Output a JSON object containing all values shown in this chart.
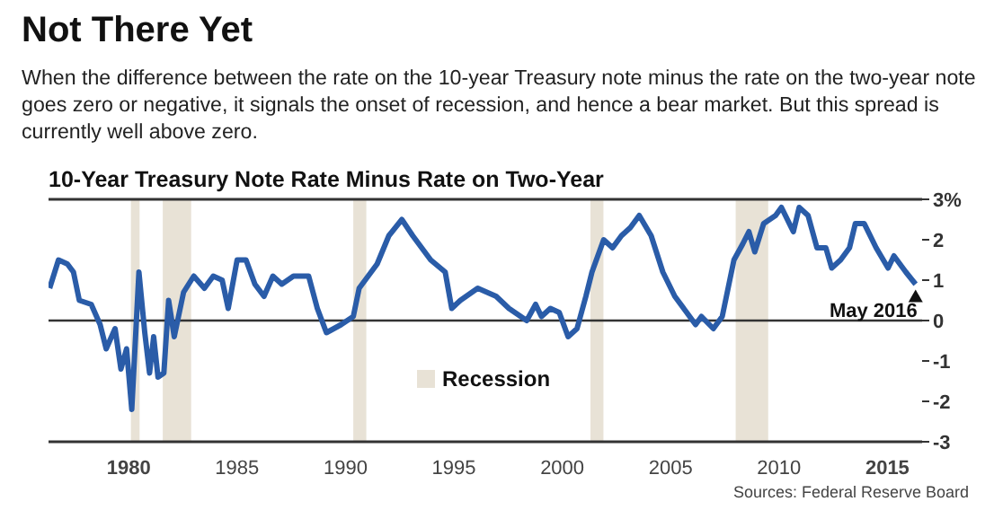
{
  "chart_data": {
    "type": "line",
    "title": "Not There Yet",
    "subtitle": "When the difference between the rate on the 10-year Treasury note minus the rate on the two-year note goes zero or negative, it signals the onset of recession, and hence a bear market. But this spread is currently well above zero.",
    "annotations": [
      "10-Year Treasury Note Rate Minus Rate on Two-Year",
      "Recession",
      "Sources: Federal Reserve Board",
      {
        "text": "May 2016",
        "x": 2016.3,
        "y": 0.9
      }
    ],
    "series": [
      {
        "color": "#2a5ca8",
        "x": [
          1976.35,
          1976.76,
          1977.17,
          1977.45,
          1977.72,
          1978.27,
          1978.68,
          1978.96,
          1979.37,
          1979.64,
          1979.9,
          1980.14,
          1980.47,
          1980.74,
          1980.96,
          1981.15,
          1981.35,
          1981.62,
          1981.84,
          1982.1,
          1982.53,
          1983.0,
          1983.49,
          1983.9,
          1984.31,
          1984.59,
          1985.0,
          1985.41,
          1985.82,
          1986.24,
          1986.65,
          1987.06,
          1987.6,
          1988.3,
          1988.7,
          1989.12,
          1989.8,
          1990.36,
          1990.63,
          1991.46,
          1992.0,
          1992.6,
          1993.1,
          1993.93,
          1994.6,
          1994.9,
          1995.3,
          1996.1,
          1996.95,
          1997.54,
          1998.36,
          1998.77,
          1999.04,
          1999.45,
          1999.86,
          2000.27,
          2000.68,
          2001.09,
          2001.37,
          2001.91,
          2002.32,
          2002.73,
          2003.14,
          2003.55,
          2004.1,
          2004.64,
          2005.19,
          2005.74,
          2006.15,
          2006.42,
          2006.97,
          2007.38,
          2007.92,
          2008.33,
          2008.61,
          2008.88,
          2009.29,
          2009.84,
          2010.11,
          2010.66,
          2010.93,
          2011.34,
          2011.75,
          2012.16,
          2012.43,
          2012.84,
          2013.25,
          2013.52,
          2013.93,
          2014.48,
          2015.03,
          2015.3,
          2015.85,
          2016.3
        ],
        "values": [
          0.8,
          1.5,
          1.4,
          1.2,
          0.5,
          0.4,
          -0.1,
          -0.7,
          -0.2,
          -1.2,
          -0.7,
          -2.2,
          1.2,
          -0.3,
          -1.3,
          -0.4,
          -1.4,
          -1.3,
          0.5,
          -0.4,
          0.7,
          1.1,
          0.8,
          1.1,
          1.0,
          0.3,
          1.5,
          1.5,
          0.9,
          0.6,
          1.1,
          0.9,
          1.1,
          1.1,
          0.3,
          -0.3,
          -0.1,
          0.1,
          0.8,
          1.4,
          2.1,
          2.5,
          2.1,
          1.5,
          1.2,
          0.3,
          0.5,
          0.8,
          0.6,
          0.3,
          0.0,
          0.4,
          0.1,
          0.3,
          0.2,
          -0.4,
          -0.2,
          0.6,
          1.2,
          2.0,
          1.8,
          2.1,
          2.3,
          2.6,
          2.1,
          1.2,
          0.6,
          0.2,
          -0.1,
          0.1,
          -0.2,
          0.1,
          1.5,
          1.9,
          2.2,
          1.7,
          2.4,
          2.6,
          2.8,
          2.2,
          2.8,
          2.6,
          1.8,
          1.8,
          1.3,
          1.5,
          1.8,
          2.4,
          2.4,
          1.8,
          1.3,
          1.6,
          1.2,
          0.9
        ]
      }
    ],
    "xlim": [
      1976.3,
      2016.6
    ],
    "xticks": [
      1980,
      1985,
      1990,
      1995,
      2000,
      2005,
      2010,
      2015
    ],
    "ylim": [
      -3,
      3
    ],
    "yticks": [
      {
        "value": 3,
        "label": "3%"
      },
      2,
      1,
      0,
      -1,
      -2,
      -3
    ],
    "ref_lines": [
      {
        "axis": "y",
        "value": 0
      }
    ],
    "bands": [
      {
        "axis": "x",
        "from": 1980.1,
        "to": 1980.5,
        "color": "#e8e2d6"
      },
      {
        "axis": "x",
        "from": 1981.57,
        "to": 1982.88,
        "color": "#e8e2d6"
      },
      {
        "axis": "x",
        "from": 1990.36,
        "to": 1990.96,
        "color": "#e8e2d6"
      },
      {
        "axis": "x",
        "from": 2001.3,
        "to": 2001.9,
        "color": "#e8e2d6"
      },
      {
        "axis": "x",
        "from": 2008.0,
        "to": 2009.5,
        "color": "#e8e2d6"
      }
    ],
    "grid": false,
    "marker": "none",
    "line_style": "solid"
  }
}
